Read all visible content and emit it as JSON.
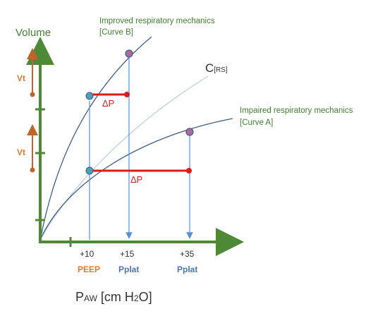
{
  "axes": {
    "y_label": "Volume",
    "x_label_main": "P",
    "x_label_sub": "AW",
    "x_label_unit_open": " [cm H",
    "x_label_unit_sub": "2",
    "x_label_unit_close": "O]"
  },
  "x_ticks": [
    "+10",
    "+15",
    "+35"
  ],
  "x_tick_labels": {
    "peep": "PEEP",
    "pplat_b": "Pplat",
    "pplat_a": "Pplat"
  },
  "tidal_volume_labels": [
    "Vt",
    "Vt"
  ],
  "curves": {
    "b_title": "Improved respiratory mechanics",
    "b_sub": "[Curve B]",
    "a_title": "Impaired respiratory mechanics",
    "a_sub": "[Curve A]",
    "crs_main": "C",
    "crs_sub": "[RS]"
  },
  "delta_p_labels": [
    "ΔP",
    "ΔP"
  ],
  "colors": {
    "axis": "#4e8a35",
    "curve": "#3c5d8a",
    "curve_light": "#b9cde6",
    "drop_line": "#5b8fd0",
    "pressure_bar": "#e01a1a",
    "tidal_arrow": "#c0642a",
    "point_fill": "#4fa0b7",
    "point_fill_alt": "#b06a9a"
  }
}
